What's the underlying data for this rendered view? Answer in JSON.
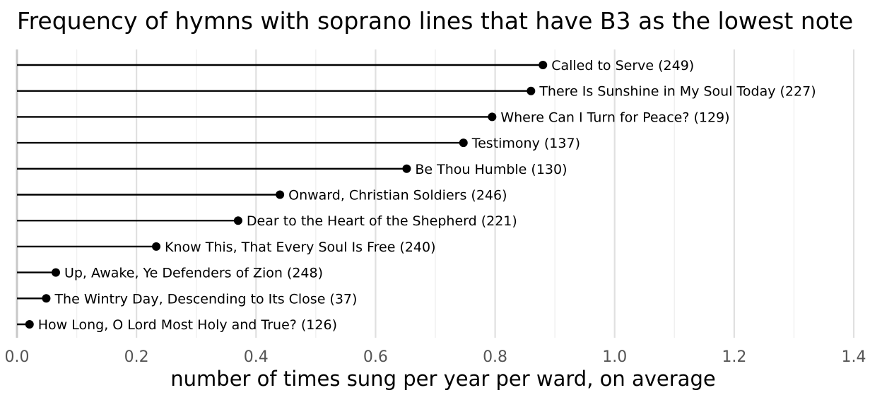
{
  "chart_data": {
    "type": "lollipop",
    "title": "Frequency of hymns with soprano lines that have B3 as the lowest note",
    "xlabel": "number of times sung per year per ward, on average",
    "ylabel": "",
    "xlim": [
      0,
      1.4
    ],
    "xticks": [
      "0.0",
      "0.2",
      "0.4",
      "0.6",
      "0.8",
      "1.0",
      "1.2",
      "1.4"
    ],
    "grid": true,
    "items": [
      {
        "label": "Called to Serve (249)",
        "value": 0.88
      },
      {
        "label": "There Is Sunshine in My Soul Today (227)",
        "value": 0.86
      },
      {
        "label": "Where Can I Turn for Peace? (129)",
        "value": 0.795
      },
      {
        "label": "Testimony (137)",
        "value": 0.747
      },
      {
        "label": "Be Thou Humble (130)",
        "value": 0.652
      },
      {
        "label": "Onward, Christian Soldiers (246)",
        "value": 0.44
      },
      {
        "label": "Dear to the Heart of the Shepherd (221)",
        "value": 0.37
      },
      {
        "label": "Know This, That Every Soul Is Free (240)",
        "value": 0.233
      },
      {
        "label": "Up, Awake, Ye Defenders of Zion (248)",
        "value": 0.065
      },
      {
        "label": "The Wintry Day, Descending to Its Close (37)",
        "value": 0.049
      },
      {
        "label": "How Long, O Lord Most Holy and True? (126)",
        "value": 0.021
      }
    ]
  }
}
